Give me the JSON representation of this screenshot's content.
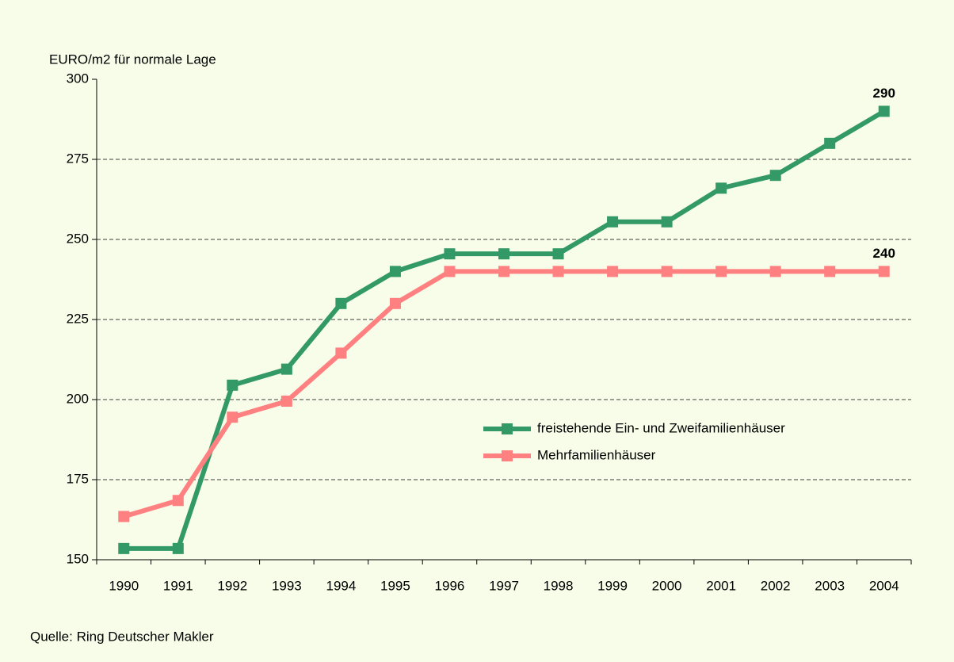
{
  "chart_data": {
    "type": "line",
    "y_axis_label": "EURO/m2 für normale Lage",
    "source": "Quelle: Ring Deutscher Makler",
    "categories": [
      "1990",
      "1991",
      "1992",
      "1993",
      "1994",
      "1995",
      "1996",
      "1997",
      "1998",
      "1999",
      "2000",
      "2001",
      "2002",
      "2003",
      "2004"
    ],
    "series": [
      {
        "name": "freistehende Ein- und Zweifamilienhäuser",
        "color": "#339966",
        "values": [
          153.5,
          153.5,
          204.5,
          209.5,
          230,
          240,
          245.5,
          245.5,
          245.5,
          255.5,
          255.5,
          266,
          270,
          280,
          290
        ],
        "value_labels": [
          null,
          null,
          null,
          null,
          null,
          null,
          null,
          null,
          null,
          null,
          null,
          null,
          null,
          null,
          "290"
        ]
      },
      {
        "name": "Mehrfamilienhäuser",
        "color": "#ff8080",
        "values": [
          163.5,
          168.5,
          194.5,
          199.5,
          214.5,
          230,
          240,
          240,
          240,
          240,
          240,
          240,
          240,
          240,
          240
        ],
        "value_labels": [
          null,
          null,
          null,
          null,
          null,
          null,
          null,
          null,
          null,
          null,
          null,
          null,
          null,
          null,
          "240"
        ]
      }
    ],
    "ylim": [
      150,
      300
    ],
    "yticks": [
      150,
      175,
      200,
      225,
      250,
      275,
      300
    ],
    "grid": true
  }
}
